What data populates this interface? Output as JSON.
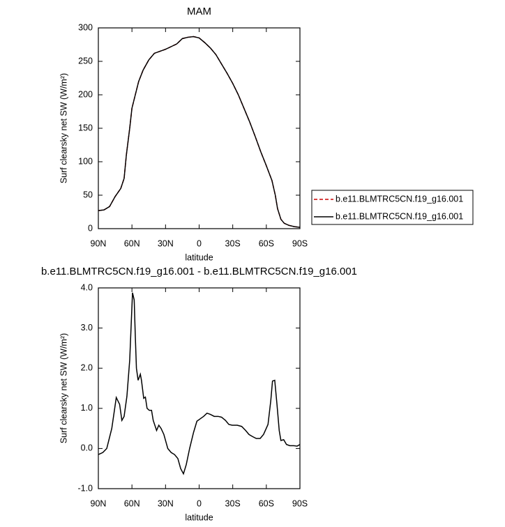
{
  "chart_data": [
    {
      "type": "line",
      "title": "MAM",
      "xlabel": "latitude",
      "ylabel": "Surf clearsky net SW (W/m²)",
      "x": [
        90,
        85,
        80,
        75,
        70,
        67,
        65,
        62,
        60,
        57,
        54,
        50,
        45,
        40,
        35,
        30,
        25,
        20,
        15,
        10,
        5,
        0,
        -5,
        -10,
        -15,
        -20,
        -25,
        -30,
        -35,
        -40,
        -45,
        -50,
        -55,
        -60,
        -65,
        -68,
        -70,
        -73,
        -76,
        -80,
        -85,
        -90
      ],
      "series": [
        {
          "name": "b.e11.BLMTRC5CN.f19_g16.001",
          "color": "#cc0000",
          "line_style": "dashed",
          "values": [
            27,
            28,
            33,
            48,
            60,
            75,
            110,
            150,
            180,
            200,
            220,
            237,
            252,
            262,
            265,
            268,
            272,
            276,
            284,
            286,
            287,
            285,
            278,
            270,
            260,
            246,
            232,
            217,
            200,
            180,
            160,
            138,
            115,
            94,
            72,
            50,
            30,
            14,
            8,
            5,
            3,
            2
          ]
        },
        {
          "name": "b.e11.BLMTRC5CN.f19_g16.001",
          "color": "#000000",
          "line_style": "solid",
          "values": [
            27,
            28,
            33,
            48,
            60,
            75,
            110,
            150,
            180,
            200,
            220,
            237,
            252,
            262,
            265,
            268,
            272,
            276,
            284,
            286,
            287,
            285,
            278,
            270,
            260,
            246,
            232,
            217,
            200,
            180,
            160,
            138,
            115,
            94,
            72,
            50,
            30,
            14,
            8,
            5,
            3,
            2
          ]
        }
      ],
      "xlim": [
        90,
        -90
      ],
      "xticks": [
        {
          "value": 90,
          "label": "90N"
        },
        {
          "value": 60,
          "label": "60N"
        },
        {
          "value": 30,
          "label": "30N"
        },
        0,
        {
          "value": -30,
          "label": "30S"
        },
        {
          "value": -60,
          "label": "60S"
        },
        {
          "value": -90,
          "label": "90S"
        }
      ],
      "ylim": [
        0,
        300
      ],
      "yticks": [
        0,
        50,
        100,
        150,
        200,
        250,
        300
      ],
      "legend": "right"
    },
    {
      "type": "line",
      "title": "b.e11.BLMTRC5CN.f19_g16.001 - b.e11.BLMTRC5CN.f19_g16.001",
      "xlabel": "latitude",
      "ylabel": "Surf clearsky net SW (W/m²)",
      "x": [
        90,
        86,
        82.5,
        78,
        74,
        71,
        69,
        67,
        64.5,
        62,
        59.5,
        58,
        57,
        56,
        54.5,
        52.5,
        51.5,
        49.5,
        48,
        46.5,
        44.5,
        42.5,
        41,
        38,
        36,
        34,
        31.5,
        28,
        25,
        22,
        19,
        16.5,
        14,
        11.5,
        8.5,
        5,
        2,
        -1.5,
        -4,
        -7,
        -10,
        -13.5,
        -17,
        -20,
        -23.5,
        -26.5,
        -29.5,
        -34,
        -38,
        -41.5,
        -44.5,
        -47.5,
        -51,
        -54.5,
        -57.5,
        -61.5,
        -64,
        -65.5,
        -67.5,
        -69.5,
        -71.5,
        -73,
        -75.5,
        -78,
        -81,
        -84.5,
        -87.5,
        -90
      ],
      "values": [
        -0.15,
        -0.1,
        0.0,
        0.5,
        1.27,
        1.1,
        0.7,
        0.8,
        1.3,
        2.2,
        3.88,
        3.7,
        2.8,
        2.0,
        1.7,
        1.85,
        1.7,
        1.25,
        1.28,
        1.0,
        0.95,
        0.95,
        0.7,
        0.45,
        0.58,
        0.5,
        0.35,
        0.0,
        -0.1,
        -0.15,
        -0.25,
        -0.5,
        -0.63,
        -0.4,
        0.0,
        0.4,
        0.68,
        0.75,
        0.8,
        0.88,
        0.85,
        0.8,
        0.8,
        0.78,
        0.7,
        0.6,
        0.58,
        0.58,
        0.55,
        0.45,
        0.35,
        0.3,
        0.25,
        0.25,
        0.35,
        0.6,
        1.2,
        1.68,
        1.7,
        1.1,
        0.45,
        0.2,
        0.22,
        0.1,
        0.07,
        0.07,
        0.06,
        0.1
      ],
      "color": "#000000",
      "xlim": [
        90,
        -90
      ],
      "xticks": [
        {
          "value": 90,
          "label": "90N"
        },
        {
          "value": 60,
          "label": "60N"
        },
        {
          "value": 30,
          "label": "30N"
        },
        0,
        {
          "value": -30,
          "label": "30S"
        },
        {
          "value": -60,
          "label": "60S"
        },
        {
          "value": -90,
          "label": "90S"
        }
      ],
      "ylim": [
        -1,
        4
      ],
      "yticks": [
        {
          "value": -1,
          "label": "-1.0"
        },
        {
          "value": 0,
          "label": "0.0"
        },
        {
          "value": 1,
          "label": "1.0"
        },
        {
          "value": 2,
          "label": "2.0"
        },
        {
          "value": 3,
          "label": "3.0"
        },
        {
          "value": 4,
          "label": "4.0"
        }
      ]
    }
  ]
}
